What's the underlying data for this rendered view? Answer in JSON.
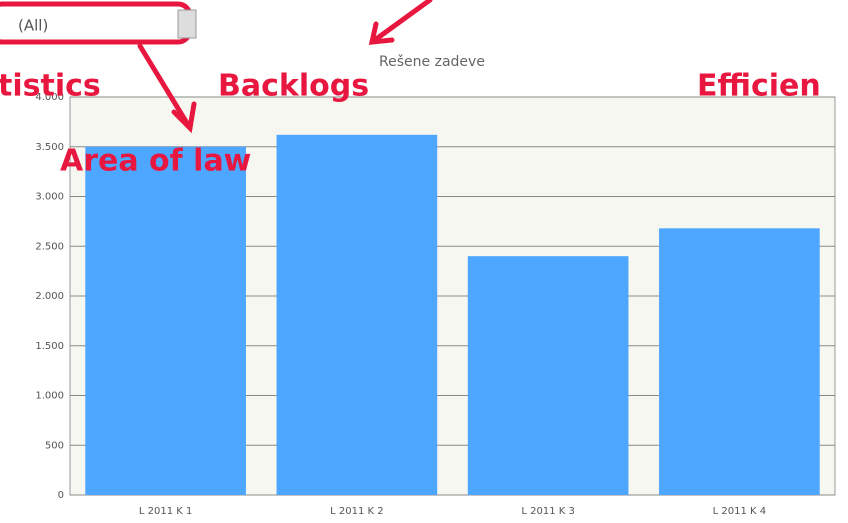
{
  "chart_data": {
    "type": "bar",
    "title": "Rešene zadeve",
    "categories": [
      "L 2011 K 1",
      "L 2011 K 2",
      "L 2011 K 3",
      "L 2011 K 4"
    ],
    "values": [
      3500,
      3620,
      2400,
      2680
    ],
    "color": "#4da6ff",
    "ylim": [
      0,
      4000
    ],
    "yticks": [
      0,
      500,
      {
        "value": 1000,
        "label": "1.000"
      },
      {
        "value": 1500,
        "label": "1.500"
      },
      {
        "value": 2000,
        "label": "2.000"
      },
      {
        "value": 2500,
        "label": "2.500"
      },
      {
        "value": 3000,
        "label": "3.000"
      },
      {
        "value": 3500,
        "label": "3.500"
      },
      {
        "value": 4000,
        "label": "4.000"
      }
    ],
    "grid": true,
    "dropdown": "(All)",
    "annotations": [
      "tistics",
      "Backlogs",
      "Efficien",
      "Area of law"
    ]
  }
}
